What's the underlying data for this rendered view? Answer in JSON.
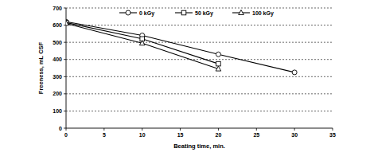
{
  "chart_data": {
    "type": "line",
    "x_label": "Beating time, min.",
    "y_label": "Freeness, mL CSF",
    "x": [
      0,
      10,
      20,
      30
    ],
    "series": [
      {
        "name": "0 kGy",
        "color": "#000000",
        "marker": "circle",
        "values": [
          620,
          540,
          430,
          325
        ]
      },
      {
        "name": "50 kGy",
        "color": "#000000",
        "marker": "square",
        "values": [
          615,
          520,
          375,
          null
        ]
      },
      {
        "name": "100 kGy",
        "color": "#000000",
        "marker": "triangle",
        "values": [
          610,
          495,
          345,
          null
        ]
      }
    ],
    "xlim": [
      0,
      35
    ],
    "xticks": [
      0,
      5,
      10,
      15,
      20,
      25,
      30,
      35
    ],
    "ylim": [
      0,
      700
    ],
    "yticks": [
      0,
      100,
      200,
      300,
      400,
      500,
      600,
      700
    ],
    "grid": true,
    "legend": "top"
  }
}
